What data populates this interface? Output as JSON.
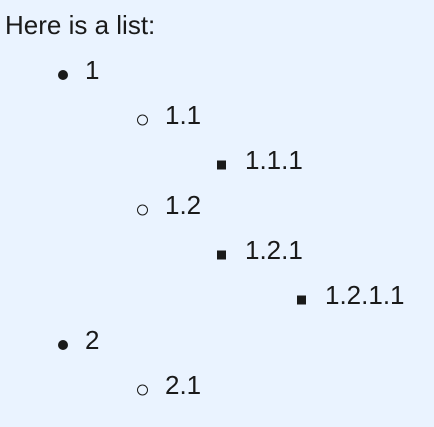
{
  "intro": "Here is a list:",
  "list": [
    {
      "label": "1",
      "children": [
        {
          "label": "1.1",
          "children": [
            {
              "label": "1.1.1"
            }
          ]
        },
        {
          "label": "1.2",
          "children": [
            {
              "label": "1.2.1",
              "children": [
                {
                  "label": "1.2.1.1"
                }
              ]
            }
          ]
        }
      ]
    },
    {
      "label": "2",
      "children": [
        {
          "label": "2.1"
        }
      ]
    }
  ],
  "markers": [
    "disc-icon",
    "circle-icon",
    "square-icon",
    "square-icon"
  ]
}
